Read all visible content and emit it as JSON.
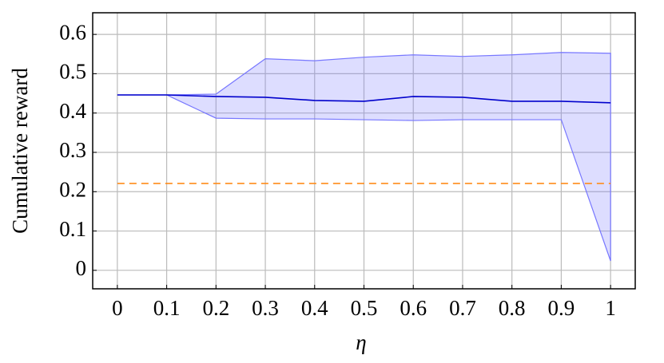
{
  "chart_data": {
    "type": "line",
    "x": [
      0,
      0.1,
      0.2,
      0.3,
      0.4,
      0.5,
      0.6,
      0.7,
      0.8,
      0.9,
      1
    ],
    "xlabel": "η",
    "ylabel": "Cumulative reward",
    "xlim": [
      -0.05,
      1.05
    ],
    "ylim": [
      -0.047,
      0.655
    ],
    "xticks": [
      0,
      0.1,
      0.2,
      0.3,
      0.4,
      0.5,
      0.6,
      0.7,
      0.8,
      0.9,
      1
    ],
    "yticks": [
      0,
      0.1,
      0.2,
      0.3,
      0.4,
      0.5,
      0.6
    ],
    "grid": true,
    "series": [
      {
        "color": "#0000cc",
        "band_color": "#7777ff",
        "values": [
          0.446,
          0.446,
          0.442,
          0.44,
          0.432,
          0.43,
          0.442,
          0.44,
          0.43,
          0.43,
          0.426
        ],
        "upper": [
          0.446,
          0.446,
          0.448,
          0.538,
          0.533,
          0.542,
          0.548,
          0.544,
          0.548,
          0.554,
          0.552
        ],
        "lower": [
          0.446,
          0.446,
          0.387,
          0.385,
          0.385,
          0.383,
          0.381,
          0.383,
          0.383,
          0.383,
          0.024
        ]
      },
      {
        "color": "#ff8c1a",
        "dashed": true,
        "values": [
          0.221,
          0.221,
          0.221,
          0.221,
          0.221,
          0.221,
          0.221,
          0.221,
          0.221,
          0.221,
          0.221
        ]
      }
    ]
  }
}
